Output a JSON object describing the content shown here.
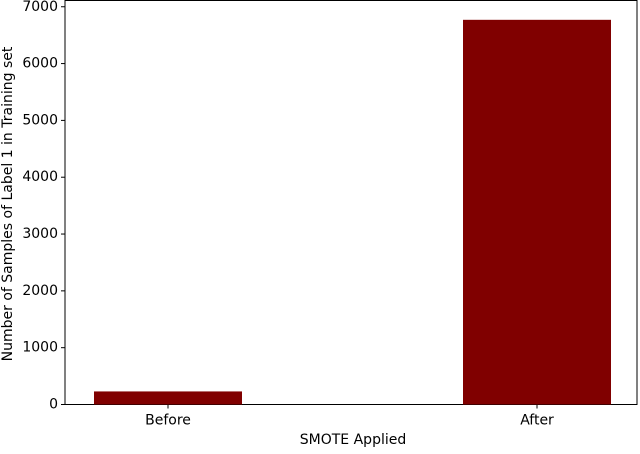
{
  "chart_data": {
    "type": "bar",
    "categories": [
      "Before",
      "After"
    ],
    "values": [
      230,
      6770
    ],
    "color": "#800000",
    "xlabel": "SMOTE Applied",
    "ylabel": "Number of Samples of Label 1 in Training set",
    "ylim": [
      0,
      7110
    ],
    "yticks": [
      0,
      1000,
      2000,
      3000,
      4000,
      5000,
      6000,
      7000
    ],
    "grid": false
  }
}
